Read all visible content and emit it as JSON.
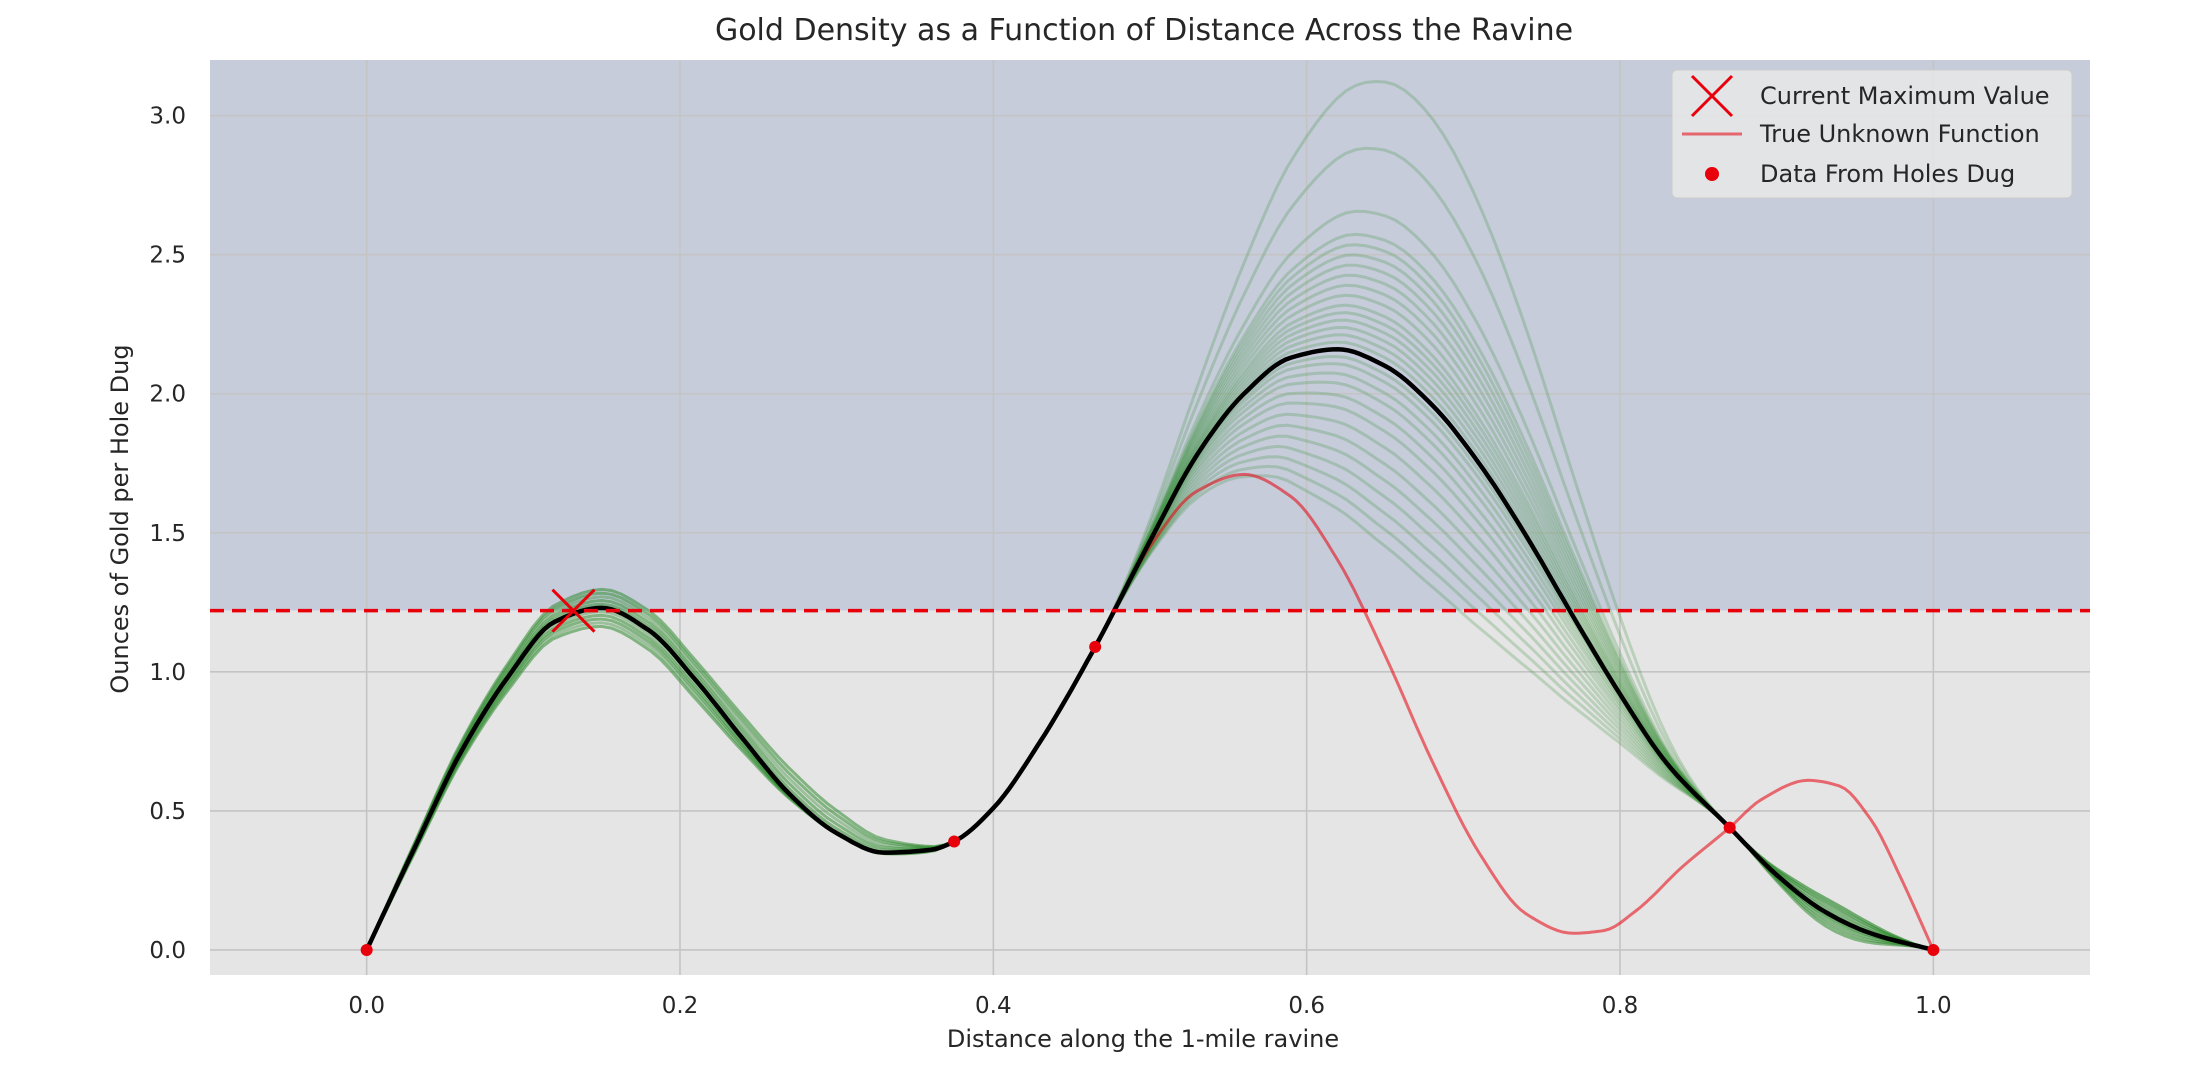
{
  "chart_data": {
    "type": "line",
    "title": "Gold Density as a Function of Distance Across the Ravine",
    "xlabel": "Distance along the 1-mile ravine",
    "ylabel": "Ounces of Gold per Hole Dug",
    "xlim": [
      -0.1,
      1.1
    ],
    "ylim": [
      -0.09,
      3.2
    ],
    "xticks": [
      0.0,
      0.2,
      0.4,
      0.6,
      0.8,
      1.0
    ],
    "xtick_labels": [
      "0.0",
      "0.2",
      "0.4",
      "0.6",
      "0.8",
      "1.0"
    ],
    "yticks": [
      0.0,
      0.5,
      1.0,
      1.5,
      2.0,
      2.5,
      3.0
    ],
    "ytick_labels": [
      "0.0",
      "0.5",
      "1.0",
      "1.5",
      "2.0",
      "2.5",
      "3.0"
    ],
    "grid": true,
    "legend_position": "top-right",
    "threshold": {
      "y": 1.22,
      "color": "#e8000b",
      "style": "dashed",
      "region_above_color": "#c6ccda",
      "region_below_color": "#e5e5e5"
    },
    "current_maximum": {
      "name": "Current Maximum Value",
      "x": 0.132,
      "y": 1.22,
      "marker": "x",
      "color": "#e8000b"
    },
    "true_function": {
      "name": "True Unknown Function",
      "color": "#e8000b",
      "x": [
        0.0,
        0.03,
        0.06,
        0.09,
        0.12,
        0.15,
        0.18,
        0.21,
        0.24,
        0.27,
        0.3,
        0.33,
        0.36,
        0.375,
        0.4,
        0.43,
        0.465,
        0.5,
        0.53,
        0.56,
        0.59,
        0.62,
        0.65,
        0.68,
        0.71,
        0.74,
        0.77,
        0.79,
        0.81,
        0.84,
        0.87,
        0.89,
        0.92,
        0.94,
        0.96,
        0.98,
        1.0
      ],
      "y": [
        0.0,
        0.36,
        0.71,
        0.98,
        1.18,
        1.23,
        1.15,
        0.97,
        0.76,
        0.56,
        0.42,
        0.35,
        0.36,
        0.39,
        0.51,
        0.75,
        1.09,
        1.45,
        1.65,
        1.71,
        1.63,
        1.4,
        1.06,
        0.68,
        0.35,
        0.13,
        0.06,
        0.07,
        0.14,
        0.3,
        0.44,
        0.54,
        0.61,
        0.59,
        0.47,
        0.25,
        0.0
      ]
    },
    "mean_prediction": {
      "color": "#000000",
      "x": [
        0.0,
        0.03,
        0.06,
        0.09,
        0.12,
        0.15,
        0.18,
        0.21,
        0.24,
        0.27,
        0.3,
        0.33,
        0.36,
        0.375,
        0.4,
        0.43,
        0.465,
        0.5,
        0.53,
        0.56,
        0.59,
        0.62,
        0.65,
        0.68,
        0.71,
        0.74,
        0.77,
        0.8,
        0.83,
        0.87,
        0.9,
        0.93,
        0.96,
        1.0
      ],
      "y": [
        0.0,
        0.36,
        0.71,
        0.98,
        1.18,
        1.23,
        1.15,
        0.97,
        0.76,
        0.56,
        0.42,
        0.35,
        0.36,
        0.39,
        0.51,
        0.75,
        1.09,
        1.47,
        1.78,
        2.0,
        2.13,
        2.16,
        2.1,
        1.96,
        1.75,
        1.49,
        1.2,
        0.92,
        0.67,
        0.44,
        0.27,
        0.14,
        0.06,
        0.0
      ]
    },
    "samples": {
      "color": "#2a8a2a",
      "opacity": 0.22,
      "peak_values": [
        1.5,
        1.56,
        1.62,
        1.68,
        1.74,
        1.8,
        1.86,
        1.92,
        1.97,
        2.02,
        2.06,
        2.1,
        2.13,
        2.16,
        2.19,
        2.22,
        2.25,
        2.28,
        2.31,
        2.34,
        2.38,
        2.42,
        2.46,
        2.5,
        2.54,
        2.58,
        2.62,
        2.71,
        2.95,
        3.2
      ]
    },
    "data_points": {
      "name": "Data From Holes Dug",
      "color": "#e8000b",
      "x": [
        0.0,
        0.375,
        0.465,
        0.87,
        1.0
      ],
      "y": [
        0.0,
        0.39,
        1.09,
        0.44,
        0.0
      ]
    }
  }
}
